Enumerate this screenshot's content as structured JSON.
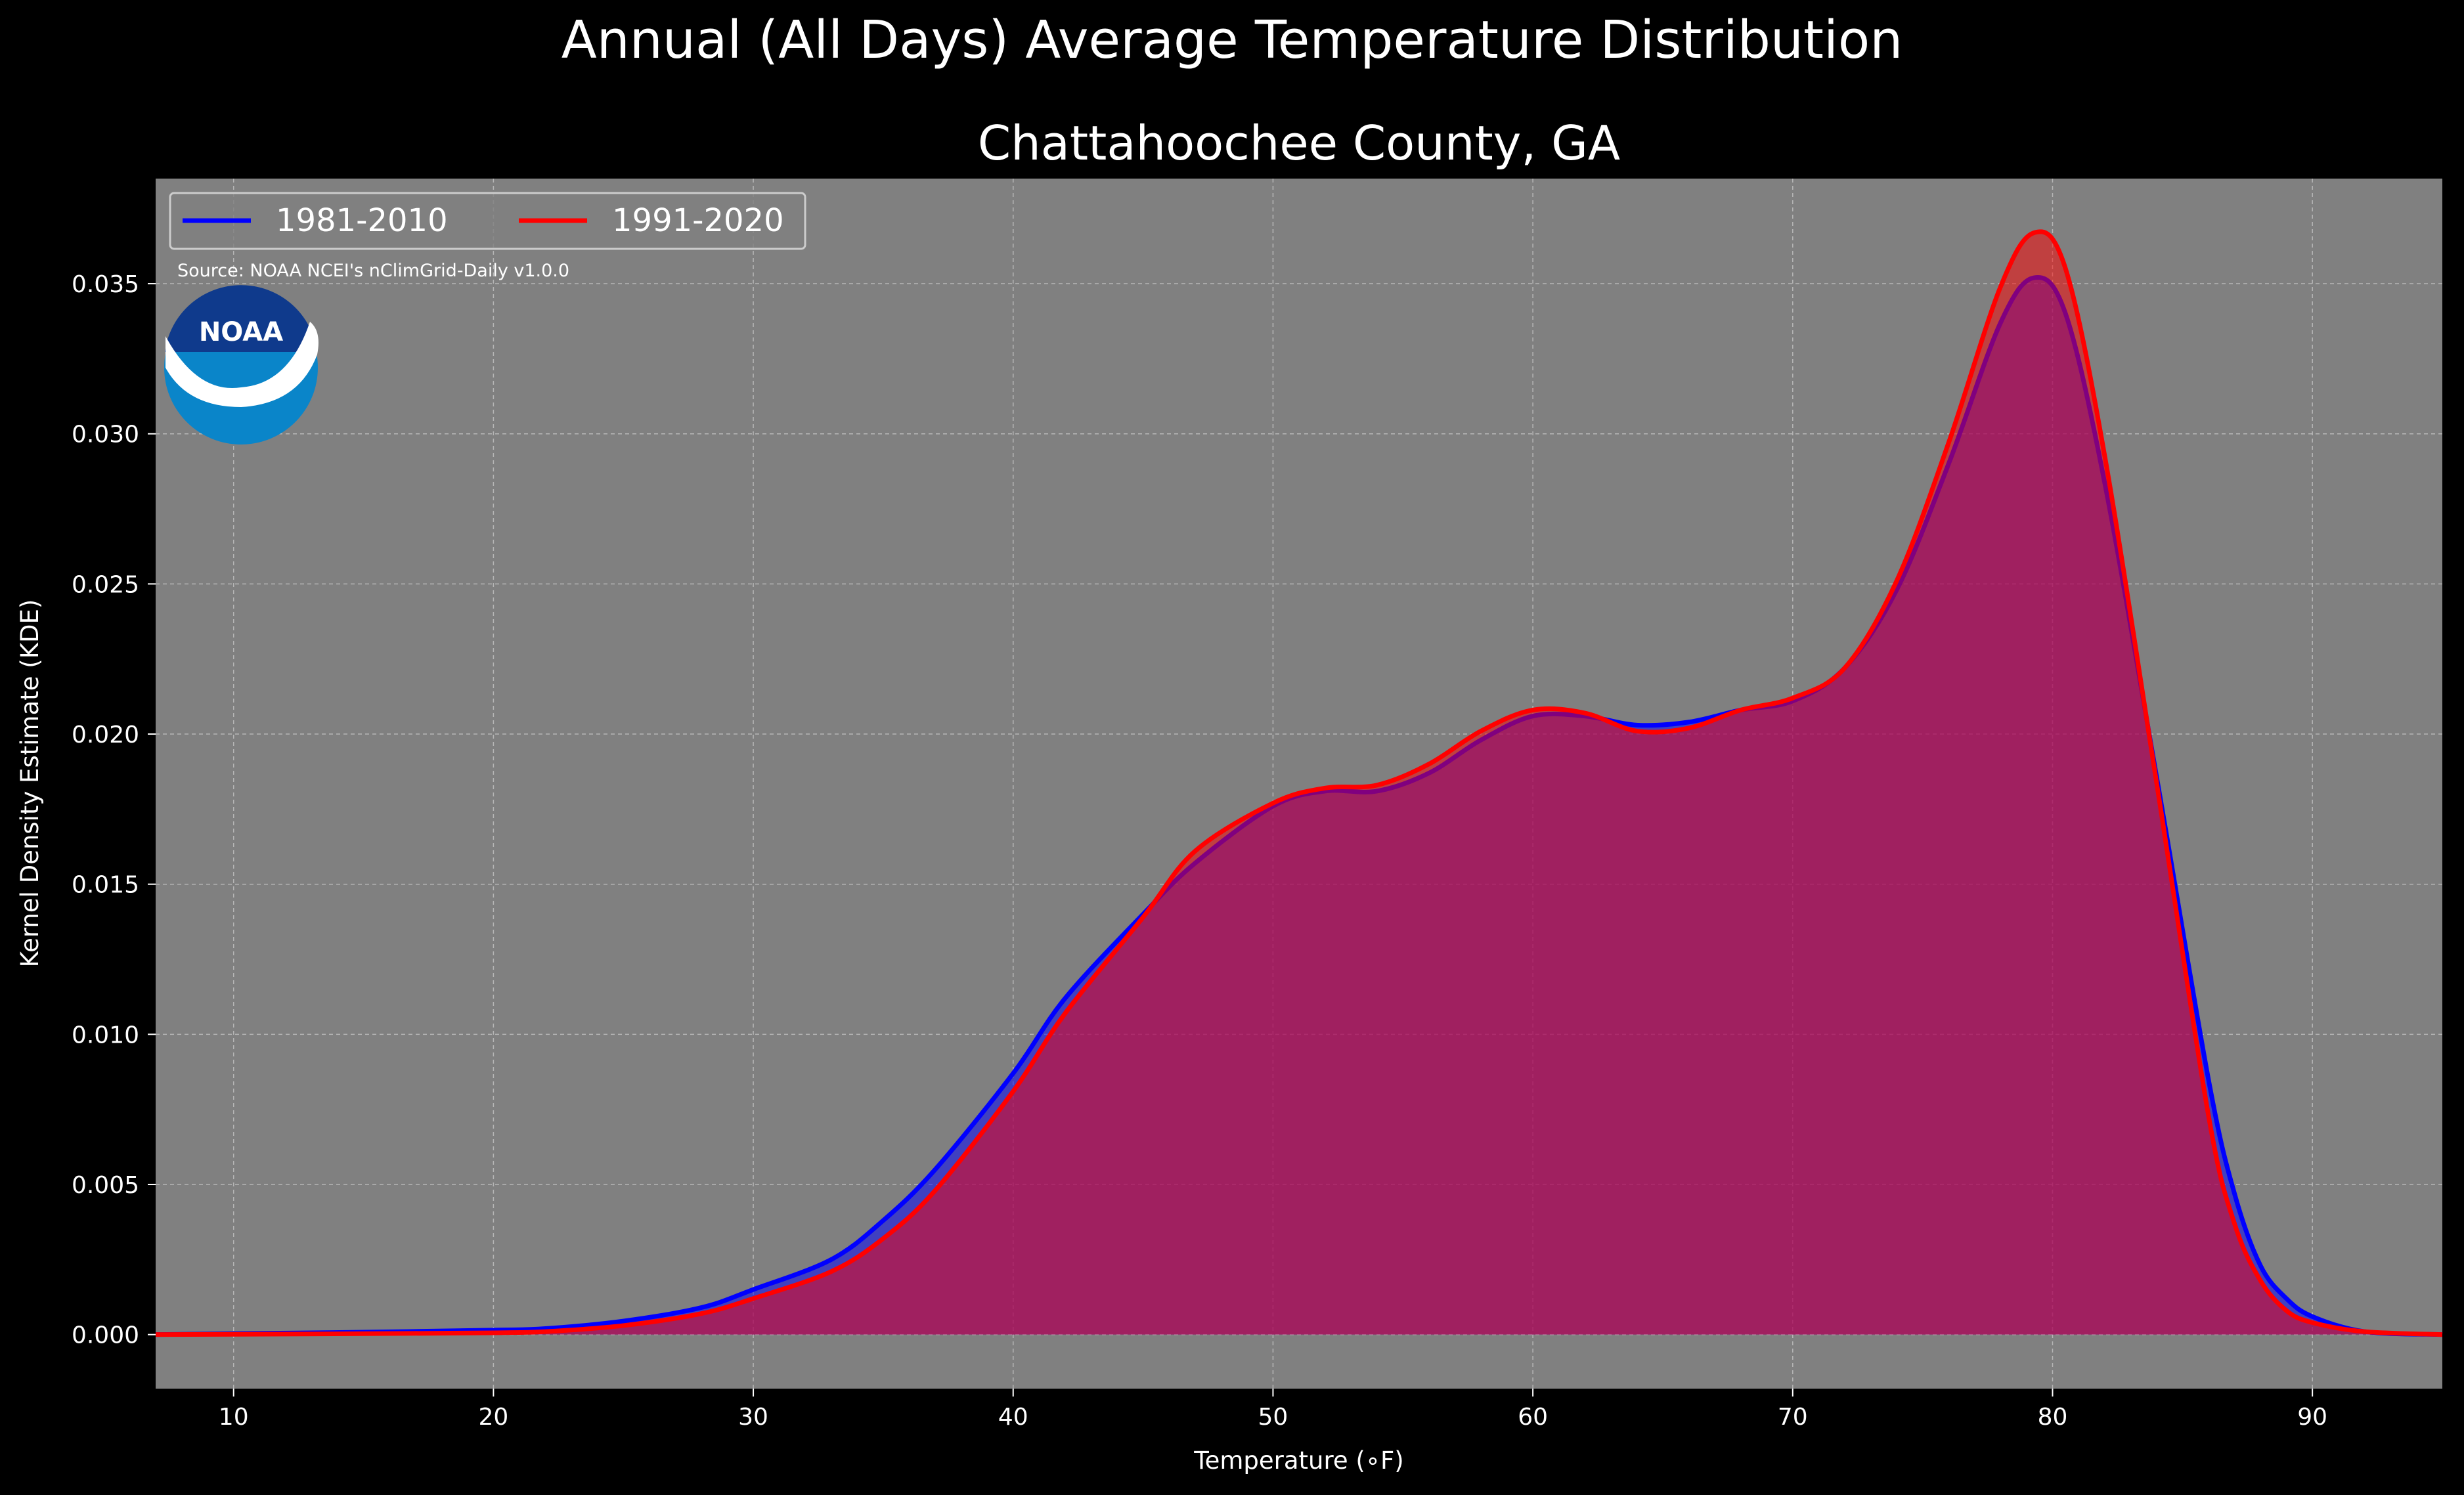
{
  "chart_data": {
    "type": "area",
    "suptitle": "Annual (All Days) Average Temperature Distribution",
    "title": "Chattahoochee County, GA",
    "xlabel": "Temperature ($^\\circ$F)",
    "xlabel_display": "Temperature (∘F)",
    "ylabel": "Kernel Density Estimate (KDE)",
    "xlim": [
      7,
      95
    ],
    "ylim": [
      -0.0018,
      0.0385
    ],
    "x_ticks": [
      10,
      20,
      30,
      40,
      50,
      60,
      70,
      80,
      90
    ],
    "x_tick_labels": [
      "10",
      "20",
      "30",
      "40",
      "50",
      "60",
      "70",
      "80",
      "90"
    ],
    "y_ticks": [
      0.0,
      0.005,
      0.01,
      0.015,
      0.02,
      0.025,
      0.03,
      0.035
    ],
    "y_tick_labels": [
      "0.000",
      "0.005",
      "0.010",
      "0.015",
      "0.020",
      "0.025",
      "0.030",
      "0.035"
    ],
    "grid": true,
    "legend_position": "top-left",
    "source": "Source: NOAA NCEI's nClimGrid-Daily v1.0.0",
    "logo_text": "NOAA",
    "series": [
      {
        "name": "1981-2010",
        "color": "#0000ff",
        "points": [
          [
            7,
            0
          ],
          [
            10,
            3e-05
          ],
          [
            15,
            8e-05
          ],
          [
            20,
            0.00015
          ],
          [
            22,
            0.0002
          ],
          [
            25,
            0.00045
          ],
          [
            28,
            0.0009
          ],
          [
            30,
            0.0015
          ],
          [
            33,
            0.0025
          ],
          [
            35,
            0.0038
          ],
          [
            37,
            0.0055
          ],
          [
            40,
            0.0087
          ],
          [
            42,
            0.0112
          ],
          [
            45,
            0.014
          ],
          [
            47,
            0.0157
          ],
          [
            50,
            0.0176
          ],
          [
            52,
            0.0181
          ],
          [
            54,
            0.0181
          ],
          [
            56,
            0.0187
          ],
          [
            58,
            0.0198
          ],
          [
            60,
            0.0206
          ],
          [
            62,
            0.0206
          ],
          [
            64,
            0.0203
          ],
          [
            66,
            0.0204
          ],
          [
            68,
            0.0208
          ],
          [
            70,
            0.0211
          ],
          [
            72,
            0.0222
          ],
          [
            74,
            0.0248
          ],
          [
            76,
            0.029
          ],
          [
            78,
            0.0337
          ],
          [
            79.3,
            0.0352
          ],
          [
            80.5,
            0.034
          ],
          [
            82,
            0.0284
          ],
          [
            84,
            0.0186
          ],
          [
            86,
            0.0085
          ],
          [
            87,
            0.0047
          ],
          [
            88,
            0.0023
          ],
          [
            89,
            0.0012
          ],
          [
            90,
            0.0006
          ],
          [
            92,
            0.0001
          ],
          [
            95,
            0
          ]
        ]
      },
      {
        "name": "1991-2020",
        "color": "#ff0000",
        "points": [
          [
            7,
            0
          ],
          [
            10,
            1e-05
          ],
          [
            15,
            3e-05
          ],
          [
            20,
            6e-05
          ],
          [
            22,
            0.0001
          ],
          [
            25,
            0.0003
          ],
          [
            28,
            0.0007
          ],
          [
            30,
            0.0012
          ],
          [
            33,
            0.0021
          ],
          [
            35,
            0.0032
          ],
          [
            37,
            0.0048
          ],
          [
            40,
            0.0081
          ],
          [
            42,
            0.0107
          ],
          [
            45,
            0.0139
          ],
          [
            47,
            0.0161
          ],
          [
            50,
            0.0177
          ],
          [
            52,
            0.0182
          ],
          [
            54,
            0.0183
          ],
          [
            56,
            0.019
          ],
          [
            58,
            0.0201
          ],
          [
            60,
            0.0208
          ],
          [
            62,
            0.0207
          ],
          [
            64,
            0.0201
          ],
          [
            66,
            0.0202
          ],
          [
            68,
            0.0208
          ],
          [
            70,
            0.0212
          ],
          [
            72,
            0.0222
          ],
          [
            74,
            0.0251
          ],
          [
            76,
            0.0297
          ],
          [
            78,
            0.0349
          ],
          [
            79.3,
            0.0367
          ],
          [
            80.5,
            0.0355
          ],
          [
            82,
            0.0293
          ],
          [
            84,
            0.0184
          ],
          [
            86,
            0.0073
          ],
          [
            87,
            0.0037
          ],
          [
            88,
            0.0018
          ],
          [
            89,
            0.0008
          ],
          [
            90,
            0.0004
          ],
          [
            92,
            0.0001
          ],
          [
            95,
            0
          ]
        ]
      }
    ]
  }
}
